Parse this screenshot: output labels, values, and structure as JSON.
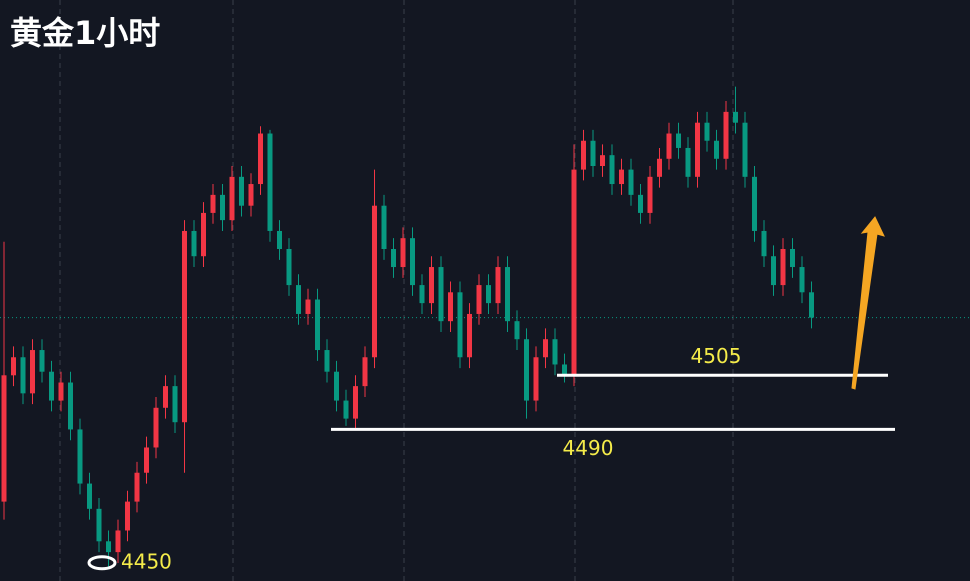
{
  "chart_data": {
    "type": "candlestick",
    "title": "黄金1小时",
    "open": [
      4470,
      4505,
      4510,
      4500,
      4512,
      4506,
      4498,
      4503,
      4490,
      4475,
      4468,
      4459,
      4456,
      4462,
      4470,
      4478,
      4485,
      4496,
      4502,
      4492,
      4545,
      4538,
      4550,
      4555,
      4548,
      4560,
      4552,
      4558,
      4572,
      4545,
      4540,
      4530,
      4522,
      4526,
      4512,
      4506,
      4498,
      4493,
      4502,
      4510,
      4552,
      4540,
      4535,
      4543,
      4530,
      4525,
      4535,
      4520,
      4528,
      4510,
      4522,
      4530,
      4525,
      4535,
      4520,
      4515,
      4498,
      4510,
      4515,
      4508,
      4505,
      4562,
      4570,
      4563,
      4566,
      4558,
      4562,
      4555,
      4550,
      4560,
      4565,
      4572,
      4568,
      4560,
      4575,
      4570,
      4565,
      4578,
      4575,
      4560,
      4545,
      4538,
      4530,
      4540,
      4535,
      4528
    ],
    "high": [
      4542,
      4513,
      4513,
      4515,
      4515,
      4509,
      4506,
      4506,
      4493,
      4478,
      4471,
      4462,
      4465,
      4473,
      4481,
      4488,
      4499,
      4505,
      4505,
      4548,
      4548,
      4553,
      4558,
      4558,
      4563,
      4563,
      4561,
      4574,
      4573,
      4548,
      4543,
      4533,
      4529,
      4529,
      4515,
      4509,
      4501,
      4505,
      4513,
      4562,
      4555,
      4543,
      4546,
      4546,
      4533,
      4538,
      4538,
      4531,
      4531,
      4525,
      4533,
      4533,
      4538,
      4538,
      4523,
      4518,
      4513,
      4518,
      4518,
      4511,
      4569,
      4573,
      4573,
      4569,
      4569,
      4565,
      4565,
      4558,
      4563,
      4568,
      4575,
      4575,
      4571,
      4578,
      4578,
      4573,
      4581,
      4585,
      4578,
      4563,
      4548,
      4541,
      4543,
      4543,
      4538,
      4531
    ],
    "low": [
      4465,
      4502,
      4497,
      4497,
      4503,
      4495,
      4495,
      4487,
      4472,
      4465,
      4456,
      4452,
      4453,
      4459,
      4467,
      4475,
      4482,
      4493,
      4489,
      4478,
      4535,
      4535,
      4547,
      4545,
      4545,
      4549,
      4549,
      4555,
      4542,
      4537,
      4527,
      4519,
      4519,
      4509,
      4503,
      4495,
      4491,
      4490,
      4499,
      4507,
      4537,
      4532,
      4532,
      4527,
      4522,
      4522,
      4517,
      4517,
      4507,
      4507,
      4519,
      4522,
      4522,
      4517,
      4512,
      4493,
      4495,
      4507,
      4505,
      4503,
      4502,
      4559,
      4560,
      4560,
      4555,
      4555,
      4552,
      4547,
      4547,
      4557,
      4562,
      4565,
      4557,
      4557,
      4567,
      4562,
      4562,
      4572,
      4557,
      4542,
      4535,
      4527,
      4527,
      4532,
      4525,
      4518
    ],
    "close": [
      4505,
      4510,
      4500,
      4512,
      4506,
      4498,
      4503,
      4490,
      4475,
      4468,
      4459,
      4456,
      4462,
      4470,
      4478,
      4485,
      4496,
      4502,
      4492,
      4545,
      4538,
      4550,
      4555,
      4548,
      4560,
      4552,
      4558,
      4572,
      4545,
      4540,
      4530,
      4522,
      4526,
      4512,
      4506,
      4498,
      4493,
      4502,
      4510,
      4552,
      4540,
      4535,
      4543,
      4530,
      4525,
      4535,
      4520,
      4528,
      4510,
      4522,
      4530,
      4525,
      4535,
      4520,
      4515,
      4498,
      4510,
      4515,
      4508,
      4505,
      4562,
      4570,
      4563,
      4566,
      4558,
      4562,
      4555,
      4550,
      4560,
      4565,
      4572,
      4568,
      4560,
      4575,
      4570,
      4565,
      4578,
      4575,
      4560,
      4545,
      4538,
      4530,
      4540,
      4535,
      4528,
      4521
    ],
    "up_color": "#f23645",
    "down_color": "#089981",
    "ylim": [
      4448,
      4609
    ],
    "last_price": 4521,
    "levels": [
      4505,
      4490,
      4450
    ],
    "level_color": "#ffffff",
    "label_color": "#f5ec4a"
  }
}
